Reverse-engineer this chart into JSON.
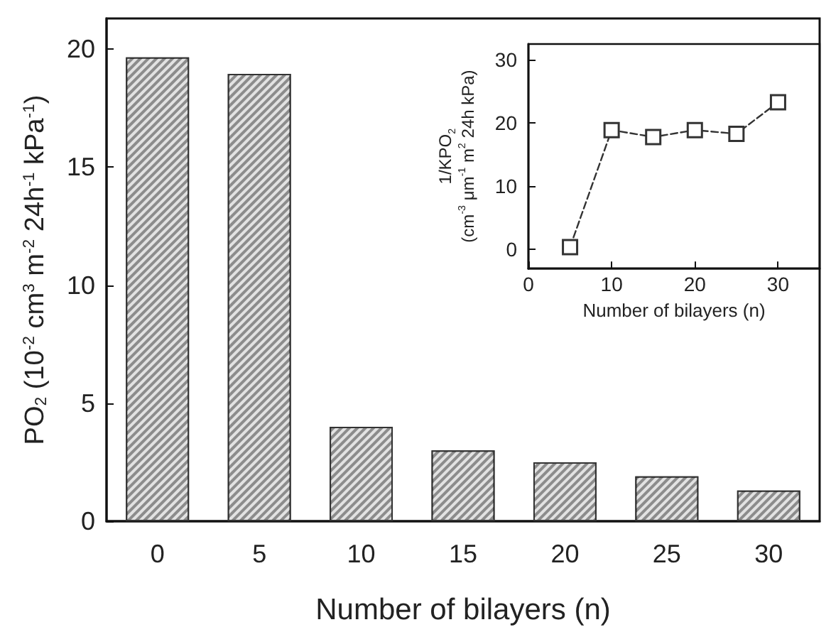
{
  "chart_data": [
    {
      "type": "bar",
      "xlabel": "Number of bilayers (n)",
      "ylabel": "PO$_{2}$ (10$^{-2}$ cm$^{3}$ m$^{-2}$ 24h$^{-1}$ kPa$^{-1}$)",
      "categories": [
        "0",
        "5",
        "10",
        "15",
        "20",
        "25",
        "30"
      ],
      "values": [
        19.65,
        18.95,
        4.0,
        3.0,
        2.5,
        1.9,
        1.3
      ],
      "color": "#8c8c8c",
      "ylim": [
        0,
        21.3
      ],
      "yticks": [
        0,
        5,
        10,
        15,
        20
      ],
      "grid": false
    },
    {
      "type": "line",
      "xlabel": "Number of bilayers (n)",
      "ylabel": "1/KPO$_{2}$\n(cm$^{-3}$ μm$^{-1}$ m$^{2}$ 24h kPa)",
      "x": [
        5,
        10,
        15,
        20,
        25,
        30
      ],
      "values": [
        0.4,
        18.9,
        17.8,
        18.9,
        18.3,
        23.3
      ],
      "color": "#333333",
      "xlim": [
        0,
        35
      ],
      "xticks": [
        0,
        10,
        20,
        30
      ],
      "ylim": [
        -3,
        32.5
      ],
      "yticks": [
        0,
        10,
        20,
        30
      ],
      "marker": "square",
      "line_style": "dashed",
      "grid": false
    }
  ]
}
